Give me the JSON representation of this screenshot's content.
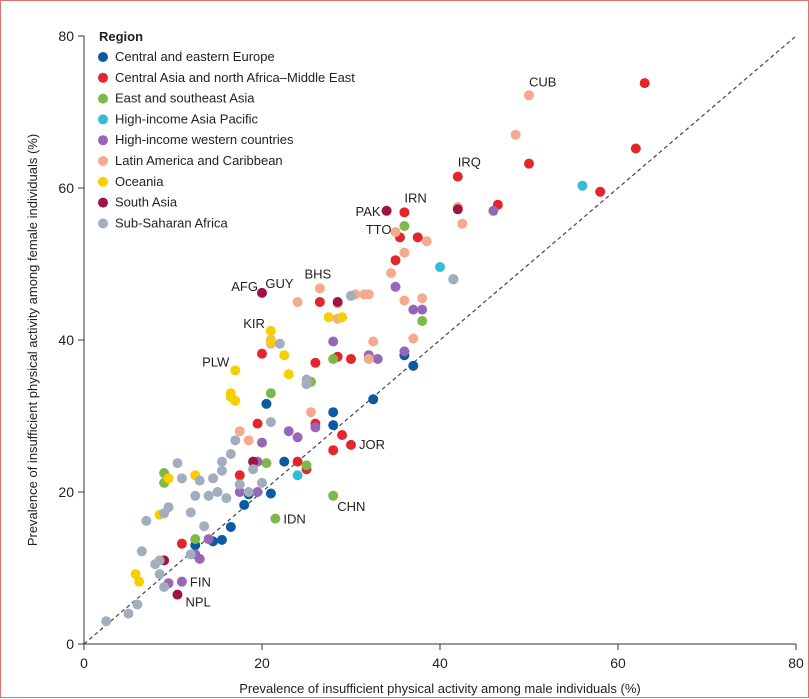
{
  "chart_data": {
    "type": "scatter",
    "title": "",
    "xlabel": "Prevalence of insufficient physical activity among male individuals (%)",
    "ylabel": "Prevalence of insufficient physical activity among female individuals (%)",
    "xlim": [
      0,
      80
    ],
    "ylim": [
      0,
      80
    ],
    "xticks": [
      0,
      20,
      40,
      60,
      80
    ],
    "yticks": [
      0,
      20,
      40,
      60,
      80
    ],
    "reference_line": "y = x (dashed)",
    "grid": false,
    "legend": {
      "title": "Region",
      "position": "top-left"
    },
    "series": [
      {
        "name": "Central and eastern Europe",
        "color": "#0b5aa3",
        "points": [
          [
            12.5,
            13
          ],
          [
            14.5,
            13.5
          ],
          [
            15.5,
            13.7
          ],
          [
            16.5,
            15.4
          ],
          [
            18,
            18.3
          ],
          [
            18.5,
            19.7
          ],
          [
            21,
            19.8
          ],
          [
            22.5,
            24
          ],
          [
            20.5,
            31.6
          ],
          [
            28,
            30.5
          ],
          [
            28,
            28.8
          ],
          [
            32.5,
            32.2
          ],
          [
            36,
            38
          ],
          [
            37,
            36.6
          ],
          [
            41.5,
            48
          ]
        ],
        "labels": []
      },
      {
        "name": "Central Asia and north Africa–Middle East",
        "color": "#e2262b",
        "points": [
          [
            11,
            13.2
          ],
          [
            19.5,
            29
          ],
          [
            20,
            38.2
          ],
          [
            24,
            24
          ],
          [
            25,
            23
          ],
          [
            26,
            29
          ],
          [
            26,
            37
          ],
          [
            26.5,
            45
          ],
          [
            28.5,
            37.8
          ],
          [
            29,
            27.5
          ],
          [
            30,
            26.2
          ],
          [
            30,
            37.5
          ],
          [
            35,
            50.5
          ],
          [
            35.5,
            53.5
          ],
          [
            36,
            56.8
          ],
          [
            37.5,
            53.5
          ],
          [
            42,
            61.5
          ],
          [
            46.5,
            57.8
          ],
          [
            50,
            63.2
          ],
          [
            58,
            59.5
          ],
          [
            62,
            65.2
          ],
          [
            63,
            73.8
          ],
          [
            28,
            25.5
          ],
          [
            17.5,
            22.2
          ]
        ],
        "labels": [
          [
            42,
            61.5,
            "IRQ"
          ],
          [
            36,
            56.8,
            "IRN"
          ],
          [
            30,
            26.2,
            "JOR"
          ]
        ]
      },
      {
        "name": "East and southeast Asia",
        "color": "#7cb84a",
        "points": [
          [
            9,
            22.5
          ],
          [
            9,
            21.2
          ],
          [
            12.5,
            13.8
          ],
          [
            20.5,
            23.8
          ],
          [
            21,
            33
          ],
          [
            25.5,
            34.5
          ],
          [
            28,
            37.5
          ],
          [
            21.5,
            16.5
          ],
          [
            28,
            19.5
          ],
          [
            36,
            55
          ],
          [
            38,
            42.5
          ],
          [
            25,
            23.5
          ]
        ],
        "labels": [
          [
            21.5,
            16.5,
            "IDN"
          ],
          [
            28,
            19.5,
            "CHN"
          ]
        ]
      },
      {
        "name": "High-income Asia Pacific",
        "color": "#33bcd6",
        "points": [
          [
            24,
            22.2
          ],
          [
            40,
            49.6
          ],
          [
            56,
            60.3
          ]
        ],
        "labels": []
      },
      {
        "name": "High-income western countries",
        "color": "#9667b8",
        "points": [
          [
            9.5,
            8
          ],
          [
            11,
            8.2
          ],
          [
            12.5,
            11.8
          ],
          [
            13,
            11.2
          ],
          [
            14,
            13.8
          ],
          [
            17.5,
            20
          ],
          [
            19.5,
            24
          ],
          [
            19.5,
            20
          ],
          [
            20,
            26.5
          ],
          [
            23,
            28
          ],
          [
            24,
            27.2
          ],
          [
            26,
            28.5
          ],
          [
            28,
            39.8
          ],
          [
            32,
            38
          ],
          [
            33,
            37.5
          ],
          [
            35,
            47
          ],
          [
            36,
            38.5
          ],
          [
            37,
            44
          ],
          [
            38,
            44
          ],
          [
            46,
            57
          ]
        ],
        "labels": [
          [
            11,
            8.2,
            "FIN"
          ]
        ]
      },
      {
        "name": "Latin America and Caribbean",
        "color": "#f5a98f",
        "points": [
          [
            17.5,
            28
          ],
          [
            18.5,
            26.8
          ],
          [
            21,
            40
          ],
          [
            21,
            39.5
          ],
          [
            24,
            45
          ],
          [
            26.5,
            46.8
          ],
          [
            28.5,
            42.8
          ],
          [
            28.5,
            44.8
          ],
          [
            25.5,
            30.5
          ],
          [
            30.5,
            46
          ],
          [
            31.5,
            46
          ],
          [
            32,
            46
          ],
          [
            32.5,
            39.8
          ],
          [
            32,
            37.5
          ],
          [
            35,
            54.2
          ],
          [
            36,
            51.5
          ],
          [
            36,
            45.2
          ],
          [
            37,
            40.2
          ],
          [
            38,
            45.5
          ],
          [
            38.5,
            53
          ],
          [
            34.5,
            48.8
          ],
          [
            42,
            57.5
          ],
          [
            42.5,
            55.3
          ],
          [
            48.5,
            67
          ],
          [
            50,
            72.2
          ]
        ],
        "labels": [
          [
            26.5,
            46.8,
            "BHS"
          ],
          [
            24,
            45,
            "GUY"
          ],
          [
            35,
            54.2,
            "TTO"
          ],
          [
            50,
            72.2,
            "CUB"
          ]
        ]
      },
      {
        "name": "Oceania",
        "color": "#f5cf00",
        "points": [
          [
            5.8,
            9.2
          ],
          [
            6.2,
            8.2
          ],
          [
            8.5,
            17
          ],
          [
            9.5,
            21.8
          ],
          [
            12.5,
            22.2
          ],
          [
            16.5,
            33
          ],
          [
            16.5,
            32.5
          ],
          [
            17,
            32
          ],
          [
            17,
            36
          ],
          [
            21,
            41.2
          ],
          [
            21,
            39.8
          ],
          [
            22.5,
            38
          ],
          [
            23,
            35.5
          ],
          [
            27.5,
            43
          ],
          [
            29,
            43
          ]
        ],
        "labels": [
          [
            17,
            36,
            "PLW"
          ],
          [
            21,
            41.2,
            "KIR"
          ]
        ]
      },
      {
        "name": "South Asia",
        "color": "#a01346",
        "points": [
          [
            9,
            11
          ],
          [
            10.5,
            6.5
          ],
          [
            19,
            24
          ],
          [
            20,
            46.2
          ],
          [
            28.5,
            45
          ],
          [
            34,
            57
          ],
          [
            42,
            57.2
          ]
        ],
        "labels": [
          [
            10.5,
            6.5,
            "NPL"
          ],
          [
            20,
            46.2,
            "AFG"
          ],
          [
            34,
            57,
            "PAK"
          ]
        ]
      },
      {
        "name": "Sub-Saharan Africa",
        "color": "#a0aebd",
        "points": [
          [
            2.5,
            3
          ],
          [
            5,
            4
          ],
          [
            6,
            5.2
          ],
          [
            6.5,
            12.2
          ],
          [
            7,
            16.2
          ],
          [
            8,
            10.5
          ],
          [
            8.5,
            11
          ],
          [
            8.5,
            9.2
          ],
          [
            9,
            7.5
          ],
          [
            9.5,
            18
          ],
          [
            9,
            17.2
          ],
          [
            10.5,
            23.8
          ],
          [
            11,
            21.8
          ],
          [
            12,
            17.3
          ],
          [
            12,
            11.8
          ],
          [
            12.5,
            19.5
          ],
          [
            13,
            21.5
          ],
          [
            13.5,
            15.5
          ],
          [
            14,
            19.5
          ],
          [
            14.5,
            21.8
          ],
          [
            15,
            20
          ],
          [
            15.5,
            22.8
          ],
          [
            15.5,
            24
          ],
          [
            16,
            19.2
          ],
          [
            16.5,
            25
          ],
          [
            17,
            26.8
          ],
          [
            17.5,
            21
          ],
          [
            18.5,
            20
          ],
          [
            19,
            23
          ],
          [
            20,
            21.2
          ],
          [
            21,
            29.2
          ],
          [
            22,
            39.5
          ],
          [
            25,
            34.8
          ],
          [
            25,
            34.2
          ],
          [
            30,
            45.8
          ],
          [
            41.5,
            48
          ]
        ],
        "labels": []
      }
    ],
    "tick_labels": {
      "x": [
        "0",
        "20",
        "40",
        "60",
        "80"
      ],
      "y": [
        "0",
        "20",
        "40",
        "60",
        "80"
      ]
    }
  }
}
